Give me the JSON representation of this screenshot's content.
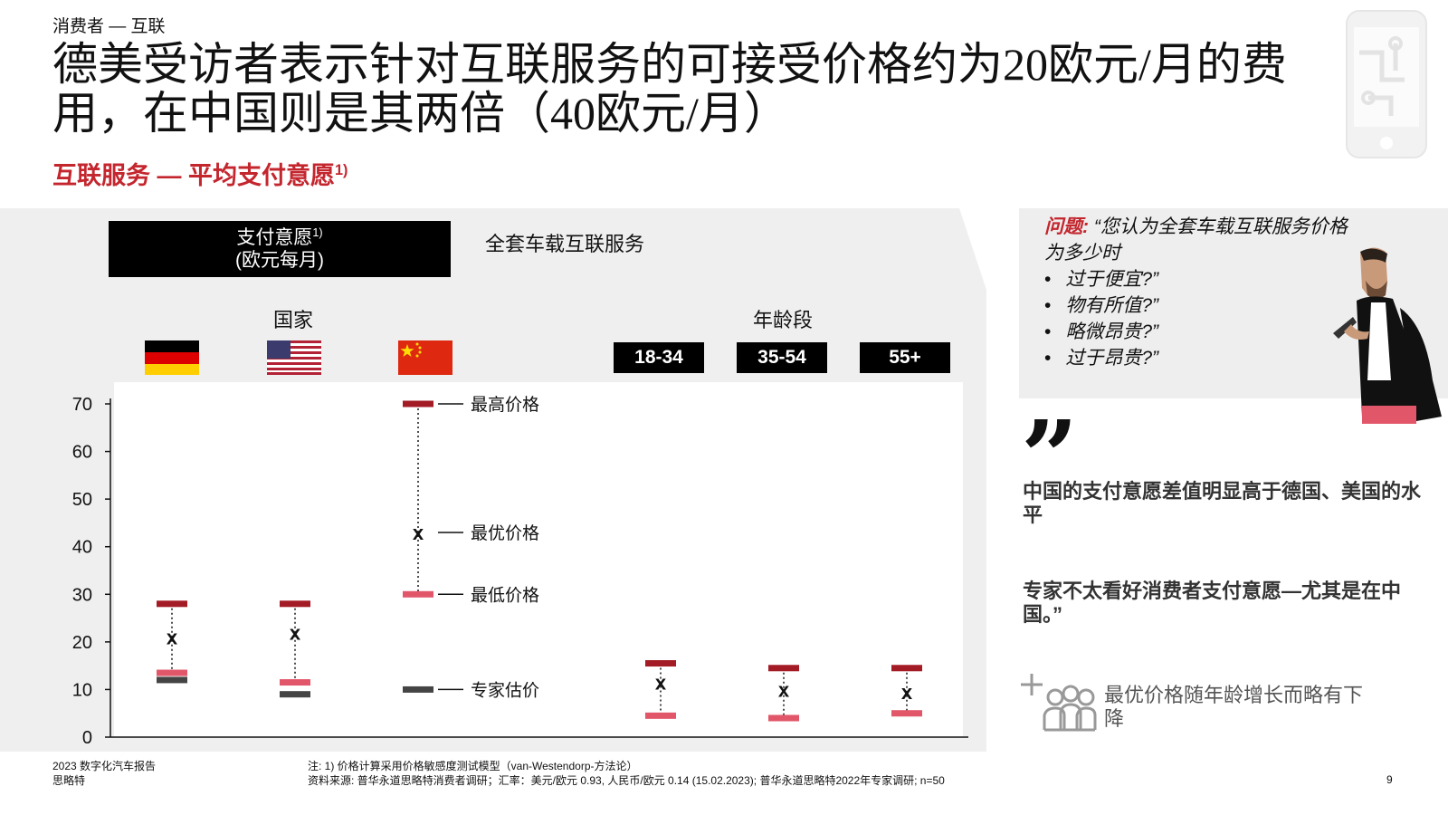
{
  "header": {
    "kicker": "消费者 — 互联",
    "title": "德美受访者表示针对互联服务的可接受价格约为20欧元/月的费用，在中国则是其两倍（40欧元/月）",
    "subtitle": "互联服务 — 平均支付意愿",
    "subtitle_sup": "1)"
  },
  "panel": {
    "wtp_label_line1": "支付意愿",
    "wtp_label_sup": "1)",
    "wtp_label_line2": "(欧元每月)",
    "scope_label": "全套车载互联服务",
    "country_group_label": "国家",
    "age_group_label": "年龄段",
    "age_tags": [
      "18-34",
      "35-54",
      "55+"
    ]
  },
  "chart_data": {
    "type": "range",
    "y_ticks": [
      0,
      10,
      20,
      30,
      40,
      50,
      60,
      70
    ],
    "ylim": [
      0,
      70
    ],
    "categories": [
      "德国",
      "美国",
      "中国",
      "18-34",
      "35-54",
      "55+"
    ],
    "series": [
      {
        "name": "最高价格",
        "values": [
          28,
          28,
          70,
          15.5,
          14.5,
          14.5
        ]
      },
      {
        "name": "最优价格",
        "values": [
          21,
          22,
          43,
          11.5,
          10,
          9.5
        ]
      },
      {
        "name": "最低价格",
        "values": [
          13.5,
          11.5,
          30,
          4.5,
          4,
          5
        ]
      },
      {
        "name": "专家估价",
        "values": [
          12,
          9,
          10,
          null,
          null,
          null
        ]
      }
    ],
    "optimal_marker": "x",
    "annotations": [
      "最高价格",
      "最优价格",
      "最低价格",
      "专家估价"
    ],
    "colors": {
      "max": "#a31b24",
      "min": "#e2566a",
      "expert": "#444444",
      "panel_bg": "#efefef",
      "plot_bg": "#ffffff"
    }
  },
  "sidebar": {
    "question_label": "问题:",
    "question_text": "“您认为全套车载互联服务价格为多少时",
    "question_options": [
      "过于便宜?”",
      "物有所值?”",
      "略微昂贵?”",
      "过于昂贵?”"
    ],
    "quote_mark": "”",
    "quote_1": "中国的支付意愿差值明显高于德国、美国的水平",
    "quote_2": "专家不太看好消费者支付意愿—尤其是在中国。”",
    "insight": "最优价格随年龄增长而略有下降"
  },
  "footer": {
    "report": "2023 数字化汽车报告",
    "company": "思略特",
    "note": "注: 1) 价格计算采用价格敏感度测试模型（van-Westendorp-方法论）",
    "source": "资料来源: 普华永道思略特消费者调研；汇率：美元/欧元 0.93, 人民币/欧元 0.14 (15.02.2023); 普华永道思略特2022年专家调研; n=50",
    "page": "9"
  }
}
